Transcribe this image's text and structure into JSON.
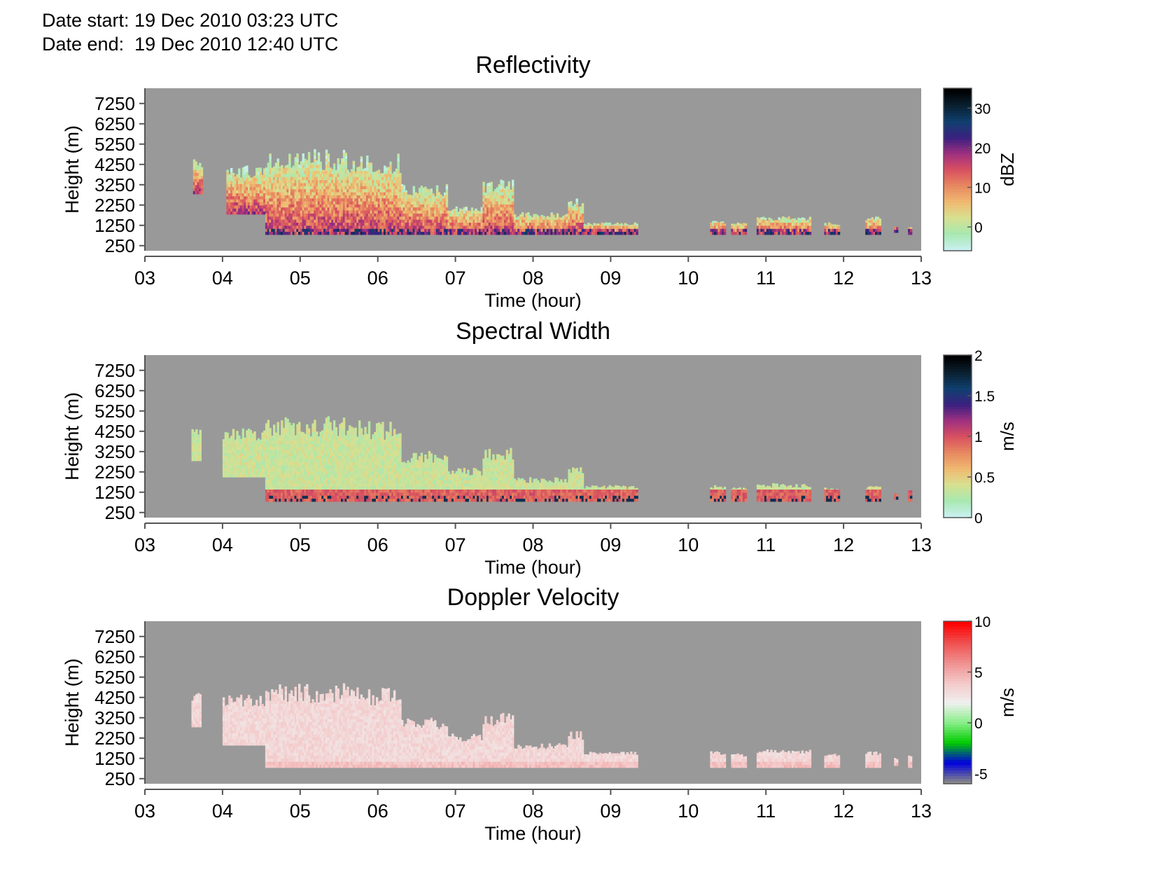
{
  "header": {
    "start": "Date start: 19 Dec 2010 03:23 UTC",
    "end": "Date end:  19 Dec 2010 12:40 UTC"
  },
  "colors": {
    "background": "#999999",
    "frame": "#555555"
  },
  "chart_data": [
    {
      "type": "heatmap",
      "title": "Reflectivity",
      "xlabel": "Time (hour)",
      "ylabel": "Height (m)",
      "x_ticks": [
        "03",
        "04",
        "05",
        "06",
        "07",
        "08",
        "09",
        "10",
        "11",
        "12",
        "13"
      ],
      "y_ticks": [
        "250",
        "1250",
        "2250",
        "3250",
        "4250",
        "5250",
        "6250",
        "7250"
      ],
      "xlim": [
        3,
        13
      ],
      "ylim": [
        0,
        8000
      ],
      "colorbar": {
        "label": "dBZ",
        "ticks": [
          "0",
          "10",
          "20",
          "30"
        ],
        "range": [
          -6,
          35
        ],
        "stops": [
          "#c8f0f0",
          "#a8e8b0",
          "#d8e090",
          "#f0b870",
          "#e88860",
          "#d85060",
          "#a03080",
          "#3a2080",
          "#104070",
          "#0a2030",
          "#000000"
        ]
      },
      "echo_regions": [
        {
          "t0": 3.62,
          "t1": 3.72,
          "top": 4500,
          "bottom": 2800
        },
        {
          "t0": 4.05,
          "t1": 4.55,
          "top": 4200,
          "bottom": 1800
        },
        {
          "t0": 4.55,
          "t1": 5.6,
          "top": 5000,
          "bottom": 800
        },
        {
          "t0": 5.6,
          "t1": 6.3,
          "top": 4800,
          "bottom": 800
        },
        {
          "t0": 6.3,
          "t1": 6.9,
          "top": 3300,
          "bottom": 800
        },
        {
          "t0": 6.9,
          "t1": 7.35,
          "top": 2200,
          "bottom": 800
        },
        {
          "t0": 7.35,
          "t1": 7.75,
          "top": 3500,
          "bottom": 800
        },
        {
          "t0": 7.75,
          "t1": 8.45,
          "top": 1900,
          "bottom": 800
        },
        {
          "t0": 8.45,
          "t1": 8.65,
          "top": 2600,
          "bottom": 800
        },
        {
          "t0": 8.65,
          "t1": 9.35,
          "top": 1400,
          "bottom": 800
        },
        {
          "t0": 10.28,
          "t1": 10.48,
          "top": 1500,
          "bottom": 800
        },
        {
          "t0": 10.55,
          "t1": 10.75,
          "top": 1400,
          "bottom": 800
        },
        {
          "t0": 10.88,
          "t1": 11.58,
          "top": 1700,
          "bottom": 800
        },
        {
          "t0": 11.75,
          "t1": 11.95,
          "top": 1400,
          "bottom": 800
        },
        {
          "t0": 12.28,
          "t1": 12.48,
          "top": 1700,
          "bottom": 800
        },
        {
          "t0": 12.65,
          "t1": 12.68,
          "top": 1200,
          "bottom": 900
        },
        {
          "t0": 12.83,
          "t1": 12.87,
          "top": 1200,
          "bottom": 800
        }
      ]
    },
    {
      "type": "heatmap",
      "title": "Spectral Width",
      "xlabel": "Time (hour)",
      "ylabel": "Height (m)",
      "x_ticks": [
        "03",
        "04",
        "05",
        "06",
        "07",
        "08",
        "09",
        "10",
        "11",
        "12",
        "13"
      ],
      "y_ticks": [
        "250",
        "1250",
        "2250",
        "3250",
        "4250",
        "5250",
        "6250",
        "7250"
      ],
      "xlim": [
        3,
        13
      ],
      "ylim": [
        0,
        8000
      ],
      "colorbar": {
        "label": "m/s",
        "ticks": [
          "0",
          "0.5",
          "1",
          "1.5",
          "2"
        ],
        "range": [
          0,
          2
        ],
        "stops": [
          "#c8f0f0",
          "#a8e8b0",
          "#d8e090",
          "#f0b870",
          "#e88860",
          "#d85060",
          "#a03080",
          "#3a2080",
          "#104070",
          "#0a2030",
          "#000000"
        ]
      },
      "echo_regions": [
        {
          "t0": 3.6,
          "t1": 3.72,
          "top": 4500,
          "bottom": 2800
        },
        {
          "t0": 4.0,
          "t1": 4.55,
          "top": 4400,
          "bottom": 2000
        },
        {
          "t0": 4.55,
          "t1": 5.6,
          "top": 5000,
          "bottom": 800
        },
        {
          "t0": 5.6,
          "t1": 6.3,
          "top": 4800,
          "bottom": 800
        },
        {
          "t0": 6.3,
          "t1": 6.9,
          "top": 3300,
          "bottom": 800
        },
        {
          "t0": 6.9,
          "t1": 7.35,
          "top": 2500,
          "bottom": 800
        },
        {
          "t0": 7.35,
          "t1": 7.75,
          "top": 3500,
          "bottom": 800
        },
        {
          "t0": 7.75,
          "t1": 8.45,
          "top": 2000,
          "bottom": 800
        },
        {
          "t0": 8.45,
          "t1": 8.65,
          "top": 2600,
          "bottom": 800
        },
        {
          "t0": 8.65,
          "t1": 9.35,
          "top": 1600,
          "bottom": 800
        },
        {
          "t0": 10.28,
          "t1": 10.48,
          "top": 1600,
          "bottom": 800
        },
        {
          "t0": 10.55,
          "t1": 10.75,
          "top": 1500,
          "bottom": 800
        },
        {
          "t0": 10.88,
          "t1": 11.58,
          "top": 1700,
          "bottom": 800
        },
        {
          "t0": 11.75,
          "t1": 11.95,
          "top": 1500,
          "bottom": 800
        },
        {
          "t0": 12.28,
          "t1": 12.48,
          "top": 1600,
          "bottom": 800
        },
        {
          "t0": 12.65,
          "t1": 12.68,
          "top": 1200,
          "bottom": 900
        },
        {
          "t0": 12.83,
          "t1": 12.87,
          "top": 1500,
          "bottom": 800
        }
      ]
    },
    {
      "type": "heatmap",
      "title": "Doppler Velocity",
      "xlabel": "Time (hour)",
      "ylabel": "Height (m)",
      "x_ticks": [
        "03",
        "04",
        "05",
        "06",
        "07",
        "08",
        "09",
        "10",
        "11",
        "12",
        "13"
      ],
      "y_ticks": [
        "250",
        "1250",
        "2250",
        "3250",
        "4250",
        "5250",
        "6250",
        "7250"
      ],
      "xlim": [
        3,
        13
      ],
      "ylim": [
        0,
        8000
      ],
      "colorbar": {
        "label": "m/s",
        "ticks": [
          "-5",
          "0",
          "5",
          "10"
        ],
        "range": [
          -6,
          10
        ],
        "stops": [
          "#888888",
          "#0000dd",
          "#00cc00",
          "#88ee88",
          "#f0f0f0",
          "#f4c8c8",
          "#f09090",
          "#f05050",
          "#ff0000"
        ]
      },
      "echo_regions": [
        {
          "t0": 3.6,
          "t1": 3.72,
          "top": 4500,
          "bottom": 2800
        },
        {
          "t0": 4.0,
          "t1": 4.55,
          "top": 4400,
          "bottom": 1900
        },
        {
          "t0": 4.55,
          "t1": 5.6,
          "top": 5000,
          "bottom": 800
        },
        {
          "t0": 5.6,
          "t1": 6.3,
          "top": 4800,
          "bottom": 800
        },
        {
          "t0": 6.3,
          "t1": 6.9,
          "top": 3300,
          "bottom": 800
        },
        {
          "t0": 6.9,
          "t1": 7.35,
          "top": 2500,
          "bottom": 800
        },
        {
          "t0": 7.35,
          "t1": 7.75,
          "top": 3500,
          "bottom": 800
        },
        {
          "t0": 7.75,
          "t1": 8.45,
          "top": 2000,
          "bottom": 800
        },
        {
          "t0": 8.45,
          "t1": 8.65,
          "top": 2600,
          "bottom": 800
        },
        {
          "t0": 8.65,
          "t1": 9.35,
          "top": 1600,
          "bottom": 800
        },
        {
          "t0": 10.28,
          "t1": 10.48,
          "top": 1600,
          "bottom": 800
        },
        {
          "t0": 10.55,
          "t1": 10.75,
          "top": 1500,
          "bottom": 800
        },
        {
          "t0": 10.88,
          "t1": 11.58,
          "top": 1700,
          "bottom": 800
        },
        {
          "t0": 11.75,
          "t1": 11.95,
          "top": 1500,
          "bottom": 800
        },
        {
          "t0": 12.28,
          "t1": 12.48,
          "top": 1600,
          "bottom": 800
        },
        {
          "t0": 12.65,
          "t1": 12.68,
          "top": 1300,
          "bottom": 900
        },
        {
          "t0": 12.83,
          "t1": 12.87,
          "top": 1500,
          "bottom": 800
        }
      ]
    }
  ]
}
